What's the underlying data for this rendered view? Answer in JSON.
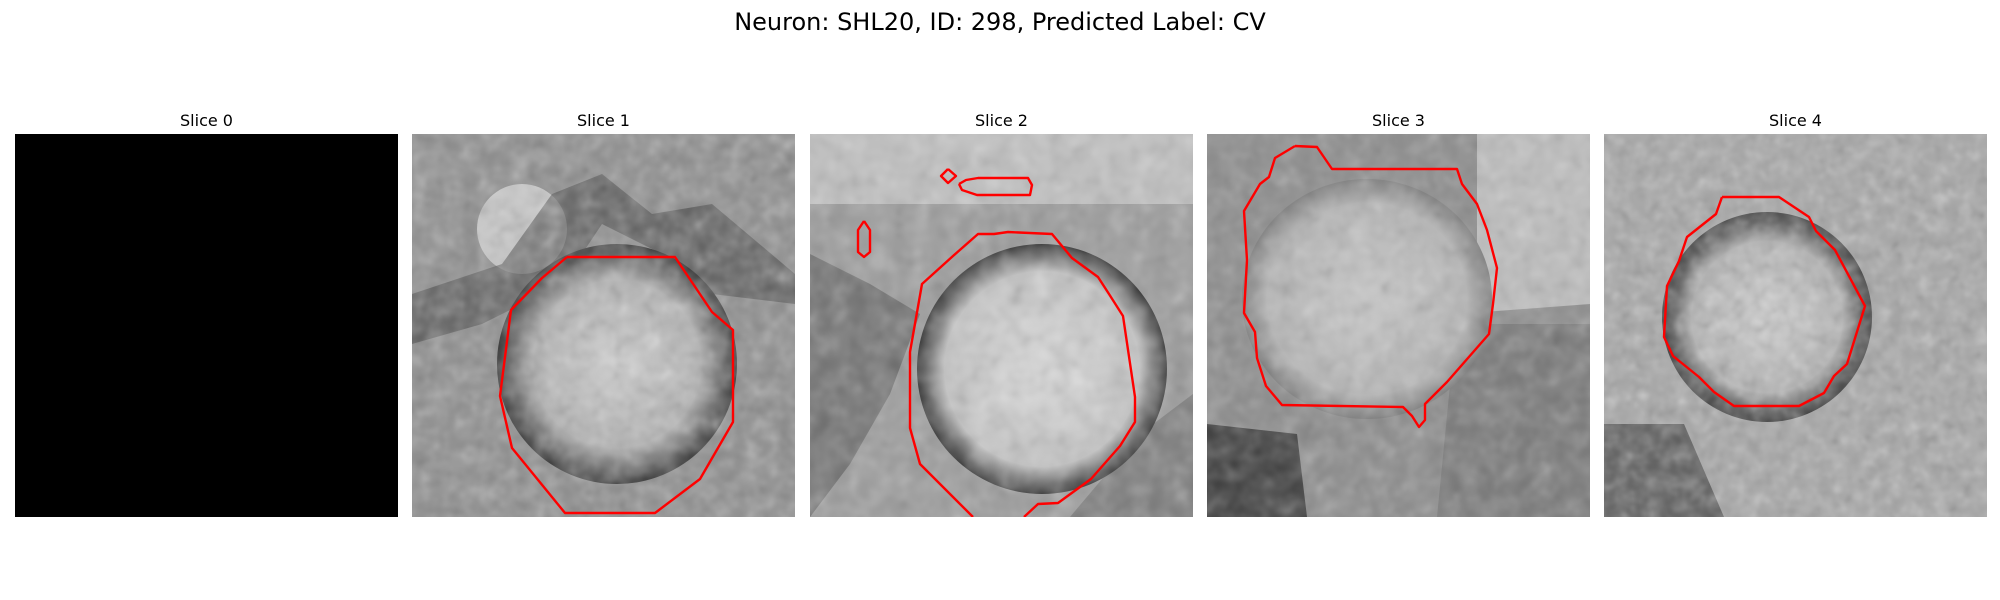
{
  "figure": {
    "suptitle": "Neuron: SHL20, ID: 298, Predicted Label: CV",
    "contour_color": "#ff0000"
  },
  "slices": [
    {
      "title": "Slice 0",
      "image": "black-empty-slice",
      "contour": false
    },
    {
      "title": "Slice 1",
      "image": "grayscale-cell-slice",
      "contour": true
    },
    {
      "title": "Slice 2",
      "image": "grayscale-cell-slice",
      "contour": true
    },
    {
      "title": "Slice 3",
      "image": "grayscale-cell-slice",
      "contour": true
    },
    {
      "title": "Slice 4",
      "image": "grayscale-cell-slice",
      "contour": true
    }
  ]
}
